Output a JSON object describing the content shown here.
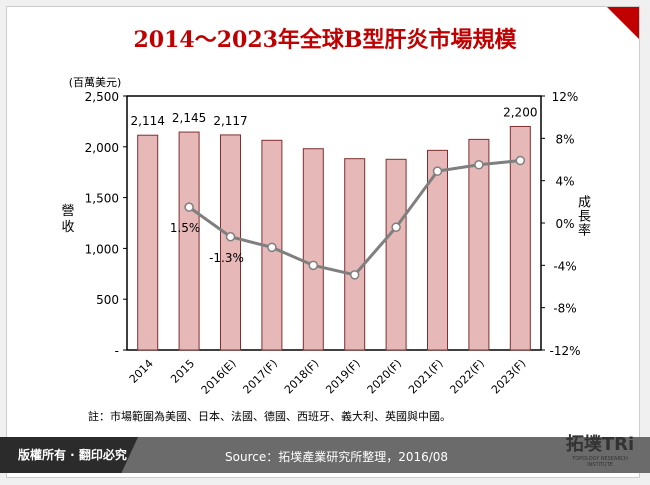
{
  "header": {
    "title": "2014～2023年全球B型肝炎市場規模"
  },
  "note": "註：市場範圍為美國、日本、法國、德國、西班牙、義大利、英國與中國。",
  "footer": {
    "copyright": "版權所有 · 翻印必究",
    "source": "Source：拓墣產業研究所整理，2016/08",
    "logo": "拓墣TRi",
    "logo_sub": "TOPOLOGY RESEARCH INSTITUTE"
  },
  "colors": {
    "bar": "#e6b8b7",
    "bar_border": "#7f2f2f",
    "line": "#7f7f7f",
    "title": "#c00000"
  },
  "chart_data": {
    "type": "bar+line",
    "categories": [
      "2014",
      "2015",
      "2016(E)",
      "2017(F)",
      "2018(F)",
      "2019(F)",
      "2020(F)",
      "2021(F)",
      "2022(F)",
      "2023(F)"
    ],
    "series": [
      {
        "axis": "left",
        "type": "bar",
        "values": [
          2114,
          2145,
          2117,
          2064,
          1981,
          1883,
          1877,
          1965,
          2073,
          2200
        ]
      },
      {
        "axis": "right",
        "type": "line",
        "values": [
          null,
          1.5,
          -1.3,
          -2.3,
          -4.0,
          -4.9,
          -0.4,
          4.9,
          5.5,
          5.9
        ]
      }
    ],
    "bar_labels": {
      "0": "2,114",
      "1": "2,145",
      "2": "2,117",
      "9": "2,200"
    },
    "line_labels": {
      "1": "1.5%",
      "2": "-1.3%"
    },
    "yunit": "(百萬美元)",
    "ylabel": "營收",
    "y2label": "成長率",
    "ylim": [
      0,
      2500
    ],
    "yticks": [
      "-",
      "500",
      "1,000",
      "1,500",
      "2,000",
      "2,500"
    ],
    "y2lim": [
      -12,
      12
    ],
    "y2ticks": [
      "-12%",
      "-8%",
      "-4%",
      "0%",
      "4%",
      "8%",
      "12%"
    ],
    "grid": false,
    "legend": "none"
  }
}
